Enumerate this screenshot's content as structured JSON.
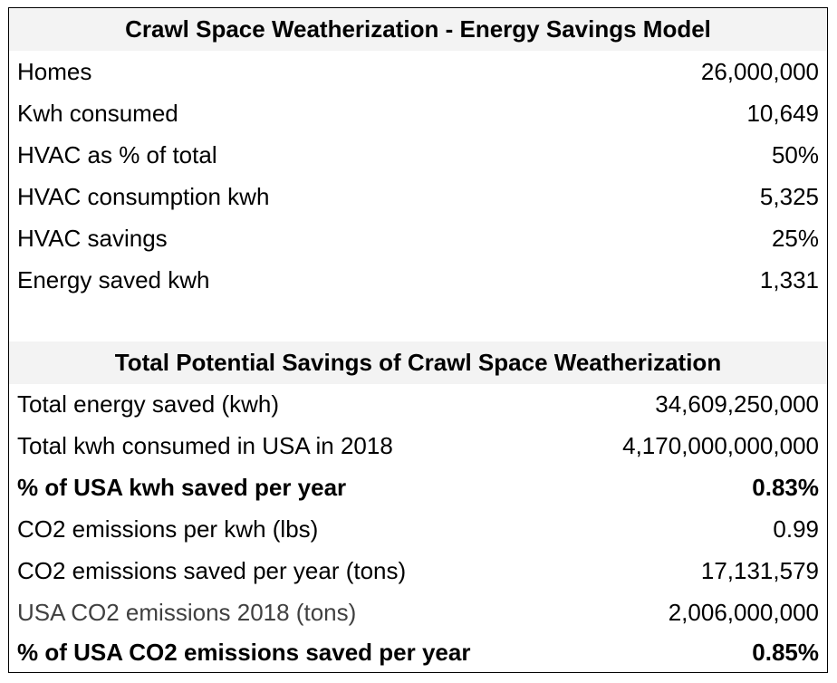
{
  "section1": {
    "title": "Crawl Space Weatherization - Energy Savings Model",
    "rows": [
      {
        "label": "Homes",
        "value": "26,000,000"
      },
      {
        "label": "Kwh consumed",
        "value": "10,649"
      },
      {
        "label": "HVAC as % of total",
        "value": "50%"
      },
      {
        "label": "HVAC consumption kwh",
        "value": "5,325"
      },
      {
        "label": "HVAC savings",
        "value": "25%"
      },
      {
        "label": "Energy saved kwh",
        "value": "1,331"
      }
    ]
  },
  "section2": {
    "title": "Total Potential Savings of Crawl Space Weatherization",
    "rows": [
      {
        "label": "Total energy saved (kwh)",
        "value": "34,609,250,000"
      },
      {
        "label": "Total kwh consumed in USA in 2018",
        "value": "4,170,000,000,000"
      },
      {
        "label": "% of USA kwh saved per year",
        "value": "0.83%"
      },
      {
        "label": "CO2 emissions per kwh (lbs)",
        "value": "0.99"
      },
      {
        "label": "CO2 emissions saved per year (tons)",
        "value": "17,131,579"
      },
      {
        "label": "USA CO2 emissions 2018 (tons)",
        "value": "2,006,000,000"
      },
      {
        "label": "% of USA CO2 emissions saved per year",
        "value": "0.85%"
      }
    ]
  },
  "colors": {
    "header_background": "#f3f3f3",
    "border": "#000000",
    "muted_text": "#404040"
  }
}
